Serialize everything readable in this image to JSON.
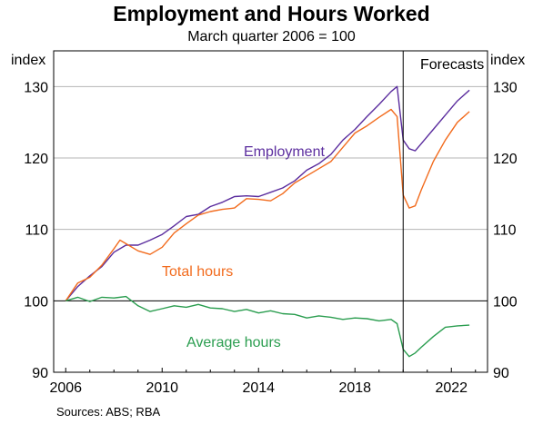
{
  "chart_data": {
    "type": "line",
    "title": "Employment and Hours Worked",
    "subtitle": "March quarter 2006 = 100",
    "ylabel_left": "index",
    "ylabel_right": "index",
    "ylim": [
      90,
      135
    ],
    "yticks": [
      90,
      100,
      110,
      120,
      130
    ],
    "xlim": [
      2005.5,
      2023.5
    ],
    "xticks": [
      2006,
      2010,
      2014,
      2018,
      2022
    ],
    "grid": true,
    "forecast_start": 2020.0,
    "forecast_label": "Forecasts",
    "series": [
      {
        "name": "Employment",
        "color": "#5b2d9e",
        "x": [
          2006.0,
          2006.5,
          2007.0,
          2007.5,
          2008.0,
          2008.5,
          2009.0,
          2009.5,
          2010.0,
          2010.5,
          2011.0,
          2011.5,
          2012.0,
          2012.5,
          2013.0,
          2013.5,
          2014.0,
          2014.5,
          2015.0,
          2015.5,
          2016.0,
          2016.5,
          2017.0,
          2017.5,
          2018.0,
          2018.5,
          2019.0,
          2019.5,
          2019.75,
          2020.0,
          2020.25,
          2020.5,
          2020.75,
          2021.25,
          2021.75,
          2022.25,
          2022.75
        ],
        "values": [
          100.0,
          102.0,
          103.5,
          104.8,
          106.8,
          107.8,
          107.8,
          108.5,
          109.3,
          110.5,
          111.8,
          112.1,
          113.2,
          113.8,
          114.6,
          114.7,
          114.6,
          115.2,
          115.8,
          116.8,
          118.3,
          119.2,
          120.5,
          122.5,
          124.0,
          125.8,
          127.5,
          129.3,
          130.0,
          122.5,
          121.3,
          121.0,
          122.0,
          124.0,
          126.0,
          128.0,
          129.5
        ]
      },
      {
        "name": "Total hours",
        "color": "#f26b1d",
        "x": [
          2006.0,
          2006.5,
          2007.0,
          2007.5,
          2008.0,
          2008.25,
          2008.5,
          2009.0,
          2009.5,
          2010.0,
          2010.5,
          2011.0,
          2011.5,
          2012.0,
          2012.5,
          2013.0,
          2013.5,
          2014.0,
          2014.5,
          2015.0,
          2015.5,
          2016.0,
          2016.5,
          2017.0,
          2017.5,
          2018.0,
          2018.5,
          2019.0,
          2019.5,
          2019.75,
          2020.0,
          2020.25,
          2020.5,
          2020.75,
          2021.25,
          2021.75,
          2022.25,
          2022.75
        ],
        "values": [
          100.0,
          102.5,
          103.3,
          105.0,
          107.3,
          108.5,
          108.0,
          107.0,
          106.5,
          107.5,
          109.5,
          110.8,
          112.0,
          112.5,
          112.8,
          113.0,
          114.3,
          114.2,
          114.0,
          115.0,
          116.5,
          117.5,
          118.5,
          119.5,
          121.5,
          123.5,
          124.5,
          125.7,
          126.8,
          125.8,
          114.8,
          113.0,
          113.3,
          115.5,
          119.5,
          122.5,
          125.0,
          126.5
        ]
      },
      {
        "name": "Average hours",
        "color": "#2a9d4f",
        "x": [
          2006.0,
          2006.5,
          2007.0,
          2007.5,
          2008.0,
          2008.5,
          2009.0,
          2009.5,
          2010.0,
          2010.5,
          2011.0,
          2011.5,
          2012.0,
          2012.5,
          2013.0,
          2013.5,
          2014.0,
          2014.5,
          2015.0,
          2015.5,
          2016.0,
          2016.5,
          2017.0,
          2017.5,
          2018.0,
          2018.5,
          2019.0,
          2019.5,
          2019.75,
          2020.0,
          2020.25,
          2020.5,
          2020.75,
          2021.25,
          2021.75,
          2022.25,
          2022.75
        ],
        "values": [
          100.0,
          100.5,
          99.9,
          100.5,
          100.4,
          100.6,
          99.3,
          98.5,
          98.9,
          99.3,
          99.1,
          99.5,
          99.0,
          98.9,
          98.5,
          98.8,
          98.3,
          98.6,
          98.2,
          98.1,
          97.6,
          97.9,
          97.7,
          97.4,
          97.6,
          97.5,
          97.2,
          97.4,
          96.8,
          93.2,
          92.2,
          92.7,
          93.5,
          95.0,
          96.3,
          96.5,
          96.6
        ]
      }
    ],
    "annotations": [
      {
        "text": "Employment",
        "series": "Employment",
        "color": "#5b2d9e"
      },
      {
        "text": "Total hours",
        "series": "Total hours",
        "color": "#f26b1d"
      },
      {
        "text": "Average hours",
        "series": "Average hours",
        "color": "#2a9d4f"
      }
    ]
  },
  "sources": "Sources:   ABS; RBA"
}
